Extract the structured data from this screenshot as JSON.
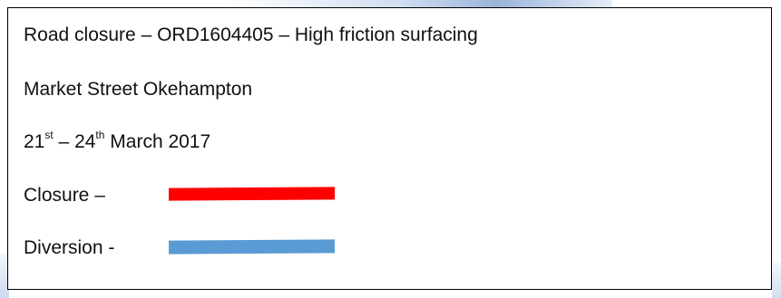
{
  "notice": {
    "title": "Road closure – ORD1604405 – High friction surfacing",
    "location": "Market Street Okehampton",
    "dates": {
      "start_day": "21",
      "start_suffix": "st",
      "separator": " – ",
      "end_day": "24",
      "end_suffix": "th",
      "month_year": " March 2017"
    },
    "legend": [
      {
        "label": "Closure –",
        "color": "#ff0000"
      },
      {
        "label": "Diversion -",
        "color": "#5b9bd5"
      }
    ]
  }
}
